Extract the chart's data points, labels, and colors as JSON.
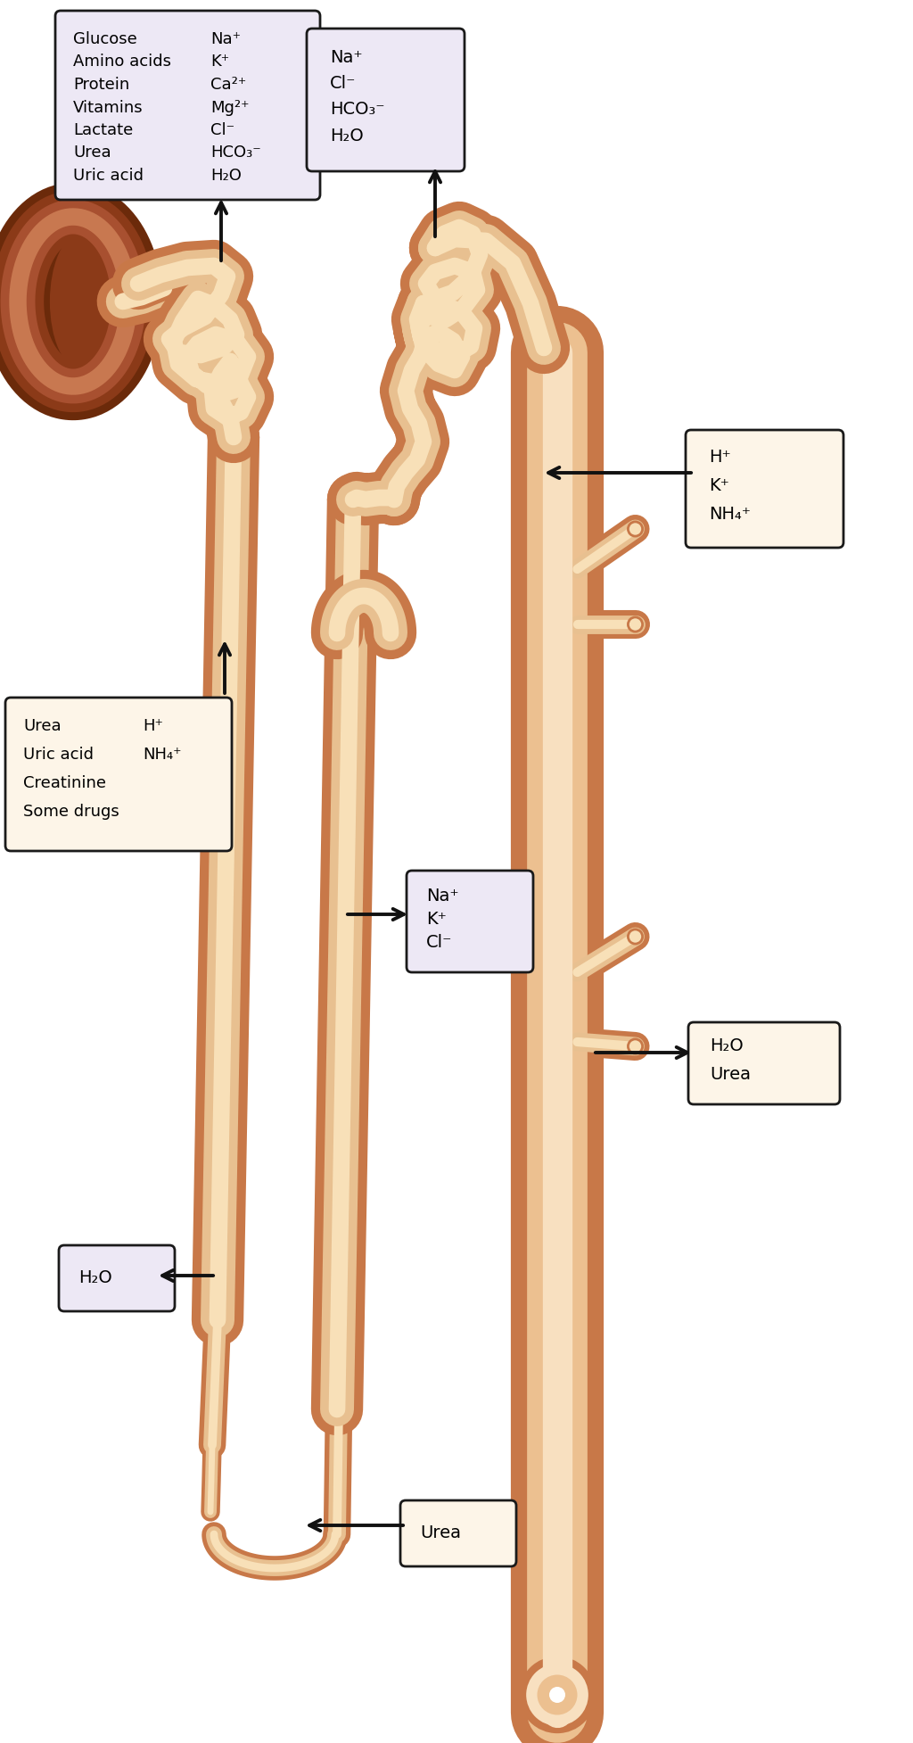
{
  "bg_color": "#ffffff",
  "tube_outer": "#C87848",
  "tube_mid": "#E8C090",
  "tube_lumen": "#F8E0B8",
  "tube_outer2": "#C87848",
  "loop_outer": "#C87848",
  "loop_mid": "#E8B878",
  "loop_lumen": "#F8D8A8",
  "cd_outer": "#C87848",
  "cd_mid": "#ECC090",
  "cd_lumen": "#F8E0C0",
  "glo_dark": "#6B2A0A",
  "glo_mid1": "#8B3A18",
  "glo_mid2": "#A85030",
  "glo_light": "#C87850",
  "glo_vlight": "#E0A878",
  "box_lavender": "#EDE8F5",
  "box_cream": "#FDF5E8",
  "box_border_dark": "#1A1A1A",
  "arrow_color": "#111111",
  "text_color": "#000000",
  "box1_left": [
    "Glucose",
    "Amino acids",
    "Protein",
    "Vitamins",
    "Lactate",
    "Urea",
    "Uric acid"
  ],
  "box1_right": [
    "Na⁺",
    "K⁺",
    "Ca²⁺",
    "Mg²⁺",
    "Cl⁻",
    "HCO₃⁻",
    "H₂O"
  ],
  "box2_items": [
    "Na⁺",
    "Cl⁻",
    "HCO₃⁻",
    "H₂O"
  ],
  "box3_items": [
    "H⁺",
    "K⁺",
    "NH₄⁺"
  ],
  "box4_left": [
    "Urea",
    "Uric acid",
    "Creatinine",
    "Some drugs"
  ],
  "box4_right": [
    "H⁺",
    "NH₄⁺",
    "",
    ""
  ],
  "box5_items": [
    "Na⁺",
    "K⁺",
    "Cl⁻"
  ],
  "box6_items": [
    "H₂O",
    "Urea"
  ],
  "box7_items": [
    "H₂O"
  ],
  "box8_items": [
    "Urea"
  ]
}
